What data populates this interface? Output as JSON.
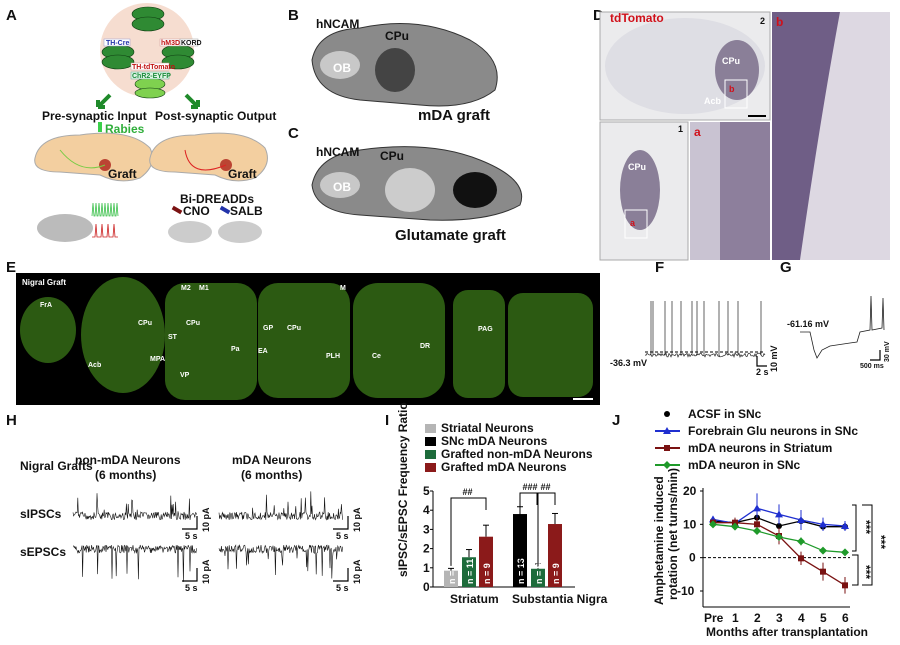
{
  "panel_labels": [
    "A",
    "B",
    "C",
    "D",
    "E",
    "F",
    "G",
    "H",
    "I",
    "J"
  ],
  "panel_a": {
    "constructs": [
      "TH-Cre",
      "hM3Dq",
      "KORD",
      "TH-tdTomato",
      "ChR2-EYFP"
    ],
    "pre_synaptic": "Pre-synaptic Input",
    "post_synaptic": "Post-synaptic Output",
    "rabies": "Rabies",
    "graft": "Graft",
    "bi_dreadds": "Bi-DREADDs",
    "cno": "CNO",
    "salb": "SALB"
  },
  "panel_b": {
    "stain": "hNCAM",
    "ob": "OB",
    "cpu": "CPu",
    "caption": "mDA graft"
  },
  "panel_c": {
    "stain": "hNCAM",
    "ob": "OB",
    "cpu": "CPu",
    "caption": "Glutamate graft"
  },
  "panel_d": {
    "stain": "tdTomato",
    "cpu": "CPu",
    "acb": "Acb",
    "inset_a": "a",
    "inset_b": "b",
    "num1": "1",
    "num2": "2"
  },
  "panel_e": {
    "title": "Nigral Graft",
    "regions": [
      "FrA",
      "Acb",
      "CPu",
      "M2",
      "M1",
      "CPu",
      "ST",
      "MPA",
      "VP",
      "Pa",
      "EA",
      "GP",
      "CPu",
      "M",
      "PLH",
      "Ce",
      "DR",
      "PAG"
    ]
  },
  "panel_f": {
    "vm": "-36.3 mV",
    "scale_y": "10 mV",
    "scale_x": "2 s"
  },
  "panel_g": {
    "vm": "-61.16 mV",
    "scale_y": "30 mV",
    "scale_x": "500 ms"
  },
  "panel_h": {
    "row_title": "Nigral Grafts",
    "col1": [
      "non-mDA Neurons",
      "(6 months)"
    ],
    "col2": [
      "mDA Neurons",
      "(6 months)"
    ],
    "rows": [
      "sIPSCs",
      "sEPSCs"
    ],
    "scale_y": "10 pA",
    "scale_x": "5 s"
  },
  "colors": {
    "striatal": "#b5b5b5",
    "snc": "#000000",
    "grafted_non_mda": "#1d6b3b",
    "grafted_mda": "#8b1a1a",
    "acsf": "#000000",
    "glu": "#1f2fd0",
    "mda_striatum": "#7a1212",
    "mda_snc": "#1f9a2a"
  },
  "chart_data": [
    {
      "type": "bar",
      "ylabel": "sIPSC/sEPSC Frequency Ratio",
      "ylim": [
        0,
        5
      ],
      "yticks": [
        "0",
        "1",
        "2",
        "3",
        "4",
        "5"
      ],
      "groups": [
        "Striatum",
        "Substantia Nigra"
      ],
      "legend": [
        "Striatal Neurons",
        "SNc mDA Neurons",
        "Grafted non-mDA Neurons",
        "Grafted mDA Neurons"
      ],
      "legend_position": "top",
      "bars": [
        {
          "group": "Striatum",
          "series": "Striatal Neurons",
          "value": 0.85,
          "err": 0.12,
          "n": "n = 15"
        },
        {
          "group": "Striatum",
          "series": "Grafted non-mDA Neurons",
          "value": 1.55,
          "err": 0.4,
          "n": "n = 11"
        },
        {
          "group": "Striatum",
          "series": "Grafted mDA Neurons",
          "value": 2.62,
          "err": 0.6,
          "n": "n = 9"
        },
        {
          "group": "Substantia Nigra",
          "series": "SNc mDA Neurons",
          "value": 3.8,
          "err": 0.38,
          "n": "n = 13"
        },
        {
          "group": "Substantia Nigra",
          "series": "Grafted non-mDA Neurons",
          "value": 0.95,
          "err": 0.25,
          "n": "n = 9"
        },
        {
          "group": "Substantia Nigra",
          "series": "Grafted mDA Neurons",
          "value": 3.28,
          "err": 0.55,
          "n": "n = 9"
        }
      ],
      "significance": [
        "##",
        "###",
        "##"
      ]
    },
    {
      "type": "line",
      "xlabel": "Months after transplantation",
      "ylabel": [
        "Amphetamine induced",
        "rotation (net turns/min)"
      ],
      "x": [
        "Pre",
        "1",
        "2",
        "3",
        "4",
        "5",
        "6"
      ],
      "ylim": [
        -15,
        20
      ],
      "yticks": [
        "20",
        "10",
        "0",
        "-10"
      ],
      "legend_position": "top",
      "series": [
        {
          "name": "ACSF in SNc",
          "marker": "circle",
          "values": [
            11,
            10.5,
            12,
            9.5,
            11,
            9.3,
            9.3
          ],
          "err": [
            1,
            1,
            1.5,
            2,
            1.5,
            1,
            1
          ]
        },
        {
          "name": "Forebrain Glu neurons in SNc",
          "marker": "triangle",
          "values": [
            11.5,
            10.3,
            14.8,
            13,
            11.3,
            10,
            9.5
          ],
          "err": [
            1,
            1.5,
            4.5,
            3,
            3,
            2,
            1.5
          ]
        },
        {
          "name": "mDA neurons in Striatum",
          "marker": "square",
          "values": [
            10.5,
            10.5,
            10,
            6.5,
            -0.2,
            -4.2,
            -8.3
          ],
          "err": [
            1,
            1.5,
            2,
            2.5,
            2,
            2.7,
            2.5
          ]
        },
        {
          "name": "mDA neuron in SNc",
          "marker": "diamond",
          "values": [
            10,
            9.3,
            8,
            6.2,
            4.9,
            2.1,
            1.6
          ],
          "err": [
            0.8,
            1,
            1,
            1,
            1.2,
            0.6,
            0.6
          ]
        }
      ],
      "significance": [
        "***",
        "***",
        "***"
      ]
    }
  ]
}
